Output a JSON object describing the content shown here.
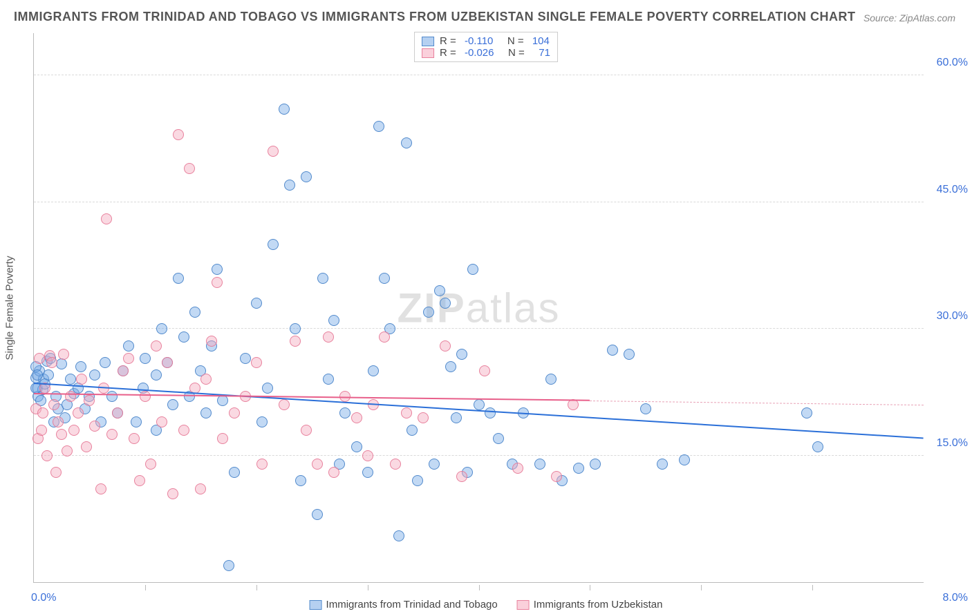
{
  "title": "IMMIGRANTS FROM TRINIDAD AND TOBAGO VS IMMIGRANTS FROM UZBEKISTAN SINGLE FEMALE POVERTY CORRELATION CHART",
  "source_prefix": "Source: ",
  "source_name": "ZipAtlas.com",
  "watermark_bold": "ZIP",
  "watermark_rest": "atlas",
  "yaxis_title": "Single Female Poverty",
  "chart": {
    "type": "scatter",
    "background_color": "#ffffff",
    "grid_color": "#d9d9d9",
    "axis_color": "#bbbbbb",
    "tick_label_color": "#3a6fd8",
    "text_color": "#555555",
    "xlim": [
      0,
      8
    ],
    "ylim": [
      0,
      65
    ],
    "y_ticks": [
      15,
      30,
      45,
      60
    ],
    "y_tick_labels": [
      "15.0%",
      "30.0%",
      "45.0%",
      "60.0%"
    ],
    "x_tick_positions": [
      1,
      2,
      3,
      4,
      5,
      6,
      7
    ],
    "x_min_label": "0.0%",
    "x_max_label": "8.0%",
    "point_radius": 8,
    "trend_line_width_blue": 2.5,
    "trend_line_width_pink": 2.0,
    "series": [
      {
        "name": "Immigrants from Trinidad and Tobago",
        "color_fill": "rgba(120,170,230,0.45)",
        "color_stroke": "rgba(70,130,200,0.9)",
        "trend_color": "#2a6fd8",
        "R": "-0.110",
        "N": "104",
        "trend": {
          "x1": 0,
          "y1": 23.5,
          "x2": 8,
          "y2": 17.0
        },
        "points": [
          [
            0.02,
            24.2
          ],
          [
            0.03,
            23.0
          ],
          [
            0.04,
            22.0
          ],
          [
            0.05,
            25.0
          ],
          [
            0.06,
            21.5
          ],
          [
            0.08,
            22.8
          ],
          [
            0.09,
            24.0
          ],
          [
            0.1,
            23.5
          ],
          [
            0.12,
            26.2
          ],
          [
            0.13,
            24.5
          ],
          [
            0.15,
            26.5
          ],
          [
            0.18,
            19.0
          ],
          [
            0.2,
            22.0
          ],
          [
            0.22,
            20.5
          ],
          [
            0.25,
            25.8
          ],
          [
            0.28,
            19.5
          ],
          [
            0.3,
            21.0
          ],
          [
            0.33,
            24.0
          ],
          [
            0.36,
            22.3
          ],
          [
            0.4,
            23.0
          ],
          [
            0.42,
            25.5
          ],
          [
            0.46,
            20.5
          ],
          [
            0.5,
            22.0
          ],
          [
            0.55,
            24.5
          ],
          [
            0.6,
            19.0
          ],
          [
            0.64,
            26.0
          ],
          [
            0.7,
            22.0
          ],
          [
            0.75,
            20.0
          ],
          [
            0.8,
            25.0
          ],
          [
            0.85,
            28.0
          ],
          [
            0.92,
            19.0
          ],
          [
            0.98,
            23.0
          ],
          [
            1.0,
            26.5
          ],
          [
            1.1,
            18.0
          ],
          [
            1.1,
            24.5
          ],
          [
            1.15,
            30.0
          ],
          [
            1.2,
            26.0
          ],
          [
            1.25,
            21.0
          ],
          [
            1.3,
            36.0
          ],
          [
            1.35,
            29.0
          ],
          [
            1.4,
            22.0
          ],
          [
            1.45,
            32.0
          ],
          [
            1.5,
            25.0
          ],
          [
            1.55,
            20.0
          ],
          [
            1.6,
            28.0
          ],
          [
            1.65,
            37.0
          ],
          [
            1.7,
            21.5
          ],
          [
            1.75,
            2.0
          ],
          [
            1.8,
            13.0
          ],
          [
            1.9,
            26.5
          ],
          [
            2.0,
            33.0
          ],
          [
            2.05,
            19.0
          ],
          [
            2.1,
            23.0
          ],
          [
            2.15,
            40.0
          ],
          [
            2.25,
            56.0
          ],
          [
            2.3,
            47.0
          ],
          [
            2.35,
            30.0
          ],
          [
            2.4,
            12.0
          ],
          [
            2.45,
            48.0
          ],
          [
            2.55,
            8.0
          ],
          [
            2.6,
            36.0
          ],
          [
            2.65,
            24.0
          ],
          [
            2.7,
            31.0
          ],
          [
            2.75,
            14.0
          ],
          [
            2.8,
            20.0
          ],
          [
            2.9,
            16.0
          ],
          [
            3.0,
            13.0
          ],
          [
            3.05,
            25.0
          ],
          [
            3.1,
            54.0
          ],
          [
            3.15,
            36.0
          ],
          [
            3.2,
            30.0
          ],
          [
            3.28,
            5.5
          ],
          [
            3.35,
            52.0
          ],
          [
            3.4,
            18.0
          ],
          [
            3.45,
            12.0
          ],
          [
            3.55,
            32.0
          ],
          [
            3.6,
            14.0
          ],
          [
            3.65,
            34.5
          ],
          [
            3.7,
            33.0
          ],
          [
            3.75,
            25.5
          ],
          [
            3.8,
            19.5
          ],
          [
            3.85,
            27.0
          ],
          [
            3.9,
            13.0
          ],
          [
            3.95,
            37.0
          ],
          [
            4.0,
            21.0
          ],
          [
            4.1,
            20.0
          ],
          [
            4.18,
            17.0
          ],
          [
            4.3,
            14.0
          ],
          [
            4.4,
            20.0
          ],
          [
            4.55,
            14.0
          ],
          [
            4.65,
            24.0
          ],
          [
            4.75,
            12.0
          ],
          [
            4.9,
            13.5
          ],
          [
            5.05,
            14.0
          ],
          [
            5.2,
            27.5
          ],
          [
            5.35,
            27.0
          ],
          [
            5.5,
            20.5
          ],
          [
            5.65,
            14.0
          ],
          [
            5.85,
            14.5
          ],
          [
            6.95,
            20.0
          ],
          [
            7.05,
            16.0
          ],
          [
            0.02,
            25.5
          ],
          [
            0.02,
            23.0
          ],
          [
            0.03,
            24.5
          ]
        ]
      },
      {
        "name": "Immigrants from Uzbekistan",
        "color_fill": "rgba(245,170,190,0.45)",
        "color_stroke": "rgba(230,120,150,0.9)",
        "trend_color": "#e85f8a",
        "R": "-0.026",
        "N": "71",
        "trend": {
          "x1": 0,
          "y1": 22.2,
          "x2": 5.0,
          "y2": 21.4
        },
        "trend_dash": {
          "x1": 5.0,
          "y1": 21.4,
          "x2": 8.0,
          "y2": 20.9
        },
        "points": [
          [
            0.02,
            20.5
          ],
          [
            0.04,
            17.0
          ],
          [
            0.05,
            26.5
          ],
          [
            0.07,
            18.0
          ],
          [
            0.08,
            20.0
          ],
          [
            0.1,
            23.0
          ],
          [
            0.12,
            15.0
          ],
          [
            0.14,
            26.8
          ],
          [
            0.16,
            26.0
          ],
          [
            0.18,
            21.0
          ],
          [
            0.2,
            13.0
          ],
          [
            0.22,
            19.0
          ],
          [
            0.25,
            17.5
          ],
          [
            0.27,
            27.0
          ],
          [
            0.3,
            15.5
          ],
          [
            0.33,
            22.0
          ],
          [
            0.36,
            18.0
          ],
          [
            0.4,
            20.0
          ],
          [
            0.43,
            24.0
          ],
          [
            0.47,
            16.0
          ],
          [
            0.5,
            21.5
          ],
          [
            0.55,
            18.5
          ],
          [
            0.6,
            11.0
          ],
          [
            0.63,
            23.0
          ],
          [
            0.65,
            43.0
          ],
          [
            0.7,
            17.5
          ],
          [
            0.75,
            20.0
          ],
          [
            0.8,
            25.0
          ],
          [
            0.85,
            26.5
          ],
          [
            0.9,
            17.0
          ],
          [
            0.95,
            12.0
          ],
          [
            1.0,
            22.0
          ],
          [
            1.05,
            14.0
          ],
          [
            1.1,
            28.0
          ],
          [
            1.15,
            19.0
          ],
          [
            1.2,
            26.0
          ],
          [
            1.25,
            10.5
          ],
          [
            1.3,
            53.0
          ],
          [
            1.35,
            18.0
          ],
          [
            1.4,
            49.0
          ],
          [
            1.45,
            23.0
          ],
          [
            1.5,
            11.0
          ],
          [
            1.55,
            24.0
          ],
          [
            1.6,
            28.5
          ],
          [
            1.65,
            35.5
          ],
          [
            1.7,
            17.0
          ],
          [
            1.8,
            20.0
          ],
          [
            1.9,
            22.0
          ],
          [
            2.0,
            26.0
          ],
          [
            2.05,
            14.0
          ],
          [
            2.15,
            51.0
          ],
          [
            2.25,
            21.0
          ],
          [
            2.35,
            28.5
          ],
          [
            2.45,
            18.0
          ],
          [
            2.55,
            14.0
          ],
          [
            2.65,
            29.0
          ],
          [
            2.7,
            13.0
          ],
          [
            2.8,
            22.0
          ],
          [
            2.9,
            19.5
          ],
          [
            3.0,
            15.0
          ],
          [
            3.05,
            21.0
          ],
          [
            3.15,
            29.0
          ],
          [
            3.25,
            14.0
          ],
          [
            3.35,
            20.0
          ],
          [
            3.5,
            19.5
          ],
          [
            3.7,
            28.0
          ],
          [
            3.85,
            12.5
          ],
          [
            4.05,
            25.0
          ],
          [
            4.35,
            13.5
          ],
          [
            4.7,
            12.5
          ],
          [
            4.85,
            21.0
          ]
        ]
      }
    ]
  },
  "legend_top": {
    "rows": [
      {
        "swatch": "blue",
        "r_label": "R = ",
        "r_val": "-0.110",
        "n_label": "   N = ",
        "n_val": "104"
      },
      {
        "swatch": "pink",
        "r_label": "R = ",
        "r_val": "-0.026",
        "n_label": "   N = ",
        "n_val": "  71"
      }
    ]
  },
  "legend_bottom": [
    {
      "swatch": "blue",
      "label": "Immigrants from Trinidad and Tobago"
    },
    {
      "swatch": "pink",
      "label": "Immigrants from Uzbekistan"
    }
  ]
}
